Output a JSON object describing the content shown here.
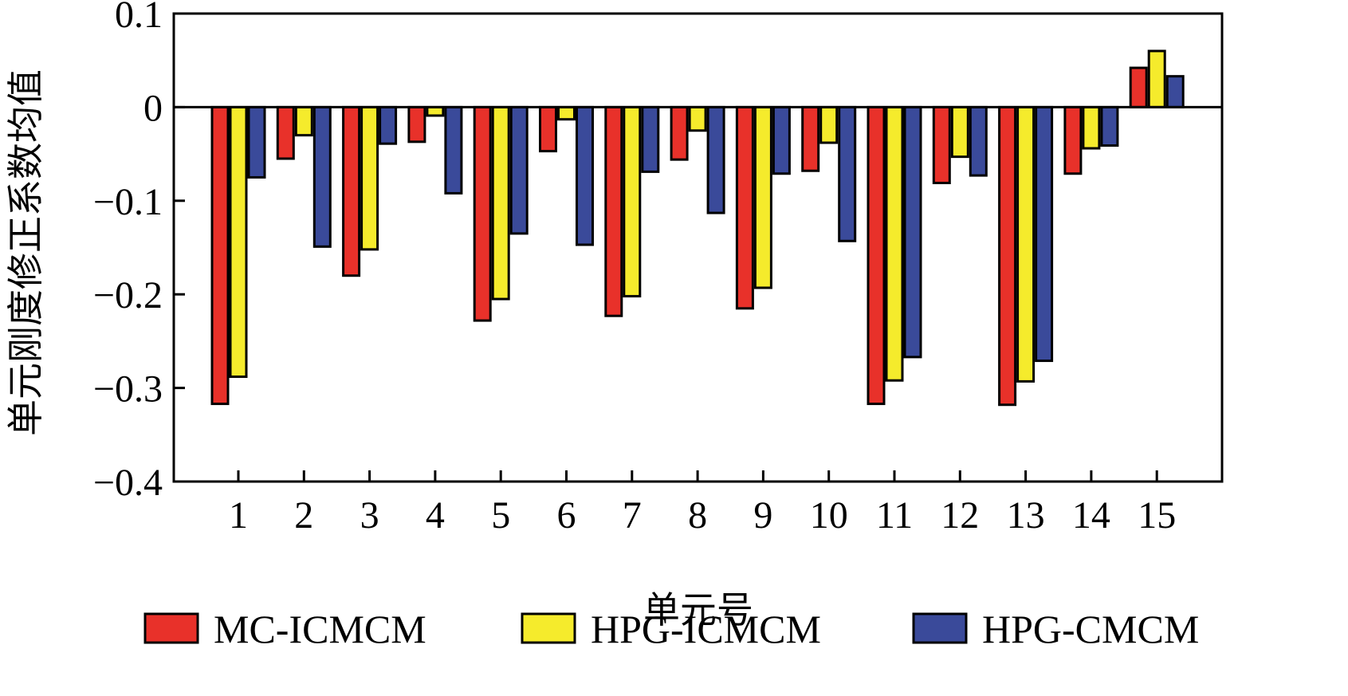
{
  "chart_data": {
    "type": "bar",
    "title": "",
    "xlabel": "单元号",
    "ylabel": "单元刚度修正系数均值",
    "ylim": [
      -0.4,
      0.1
    ],
    "yticks": [
      0.1,
      0,
      -0.1,
      -0.2,
      -0.3,
      -0.4
    ],
    "ytick_labels": [
      "0.1",
      "0",
      "−0.1",
      "−0.2",
      "−0.3",
      "−0.4"
    ],
    "categories": [
      "1",
      "2",
      "3",
      "4",
      "5",
      "6",
      "7",
      "8",
      "9",
      "10",
      "11",
      "12",
      "13",
      "14",
      "15"
    ],
    "series": [
      {
        "name": "MC-ICMCM",
        "color": "#e8312a",
        "values": [
          -0.317,
          -0.055,
          -0.18,
          -0.037,
          -0.228,
          -0.047,
          -0.223,
          -0.056,
          -0.215,
          -0.068,
          -0.317,
          -0.081,
          -0.318,
          -0.071,
          0.042
        ]
      },
      {
        "name": "HPG-ICMCM",
        "color": "#f5eb2c",
        "values": [
          -0.288,
          -0.03,
          -0.152,
          -0.009,
          -0.205,
          -0.013,
          -0.202,
          -0.025,
          -0.193,
          -0.038,
          -0.292,
          -0.053,
          -0.293,
          -0.044,
          0.06
        ]
      },
      {
        "name": "HPG-CMCM",
        "color": "#3a4a9a",
        "values": [
          -0.075,
          -0.149,
          -0.039,
          -0.092,
          -0.135,
          -0.147,
          -0.069,
          -0.113,
          -0.071,
          -0.143,
          -0.267,
          -0.073,
          -0.271,
          -0.041,
          0.033
        ]
      }
    ],
    "grid": false,
    "legend_position": "bottom"
  }
}
